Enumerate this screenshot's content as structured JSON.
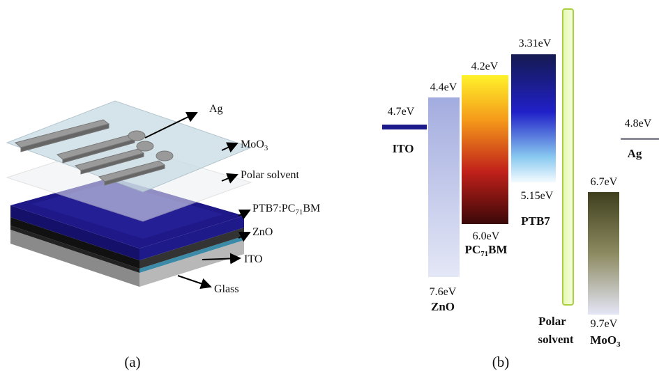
{
  "panel_a": {
    "caption": "(a)",
    "labels": {
      "ag": "Ag",
      "moo3": [
        "MoO",
        "3"
      ],
      "polar_solvent": "Polar solvent",
      "active": [
        "PTB7:PC",
        "71",
        "BM"
      ],
      "zno": "ZnO",
      "ito": "ITO",
      "glass": "Glass"
    }
  },
  "panel_b": {
    "caption": "(b)",
    "ito": {
      "name": "ITO",
      "level": "4.7eV"
    },
    "zno": {
      "name": "ZnO",
      "top": "4.4eV",
      "bottom": "7.6eV"
    },
    "pcbm": {
      "name": [
        "PC",
        "71",
        "BM"
      ],
      "top": "4.2eV",
      "bottom": "6.0eV"
    },
    "ptb7": {
      "name": "PTB7",
      "top": "3.31eV",
      "bottom": "5.15eV"
    },
    "polar_solvent": {
      "name": [
        "Polar",
        "solvent"
      ]
    },
    "moo3": {
      "name": [
        "MoO",
        "3"
      ],
      "top": "6.7eV",
      "bottom": "9.7eV"
    },
    "ag": {
      "name": "Ag",
      "level": "4.8eV"
    }
  }
}
